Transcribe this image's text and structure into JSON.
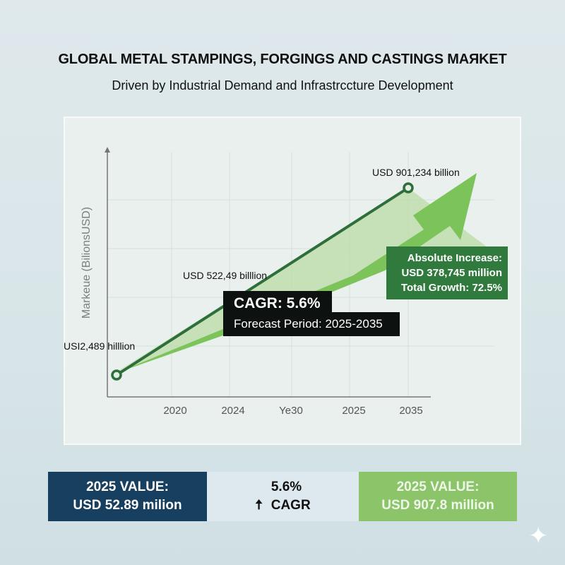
{
  "header": {
    "title": "GLOBAL METAL STAMPINGS, FORGINGS AND CASTINGS MAЯKET",
    "subtitle": "Driven by Industrial Demand and Infrastrccture Development"
  },
  "chart_data": {
    "type": "line",
    "ylabel": "Markeue (BilionsUSD)",
    "xlabel": "",
    "x_tick_labels": [
      "2020",
      "2024",
      "Ye30",
      "2025",
      "2035"
    ],
    "grid": true,
    "series": [
      {
        "points": [
          {
            "label": "USI2,489 hilllion"
          },
          {
            "label": "USD 522,49 billlion"
          },
          {
            "label": "USD 901,234 billion"
          }
        ]
      }
    ],
    "colors": {
      "line": "#2e6e3a",
      "arrow": "#7cc45a",
      "band": "#b5d9a0"
    }
  },
  "annotations": {
    "cagr": "CAGR: 5.6%",
    "forecast": "Forecast Period: 2025-2035",
    "absolute_increase": [
      "Absolute Increase:",
      "USD 378,745 million",
      "Total Growth: 72.5%"
    ]
  },
  "summary": {
    "left": {
      "line1": "2025 VALUE:",
      "line2": "USD 52.89 milion",
      "color": "#173f5f"
    },
    "middle": {
      "value": "5.6%",
      "label": "CAGR",
      "icon": "arrow-up-icon"
    },
    "right": {
      "line1": "2025 VALUE:",
      "line2": "USD 907.8 million",
      "color": "#8cc46a"
    }
  },
  "watermark": {
    "icon": "sparkle-icon"
  }
}
